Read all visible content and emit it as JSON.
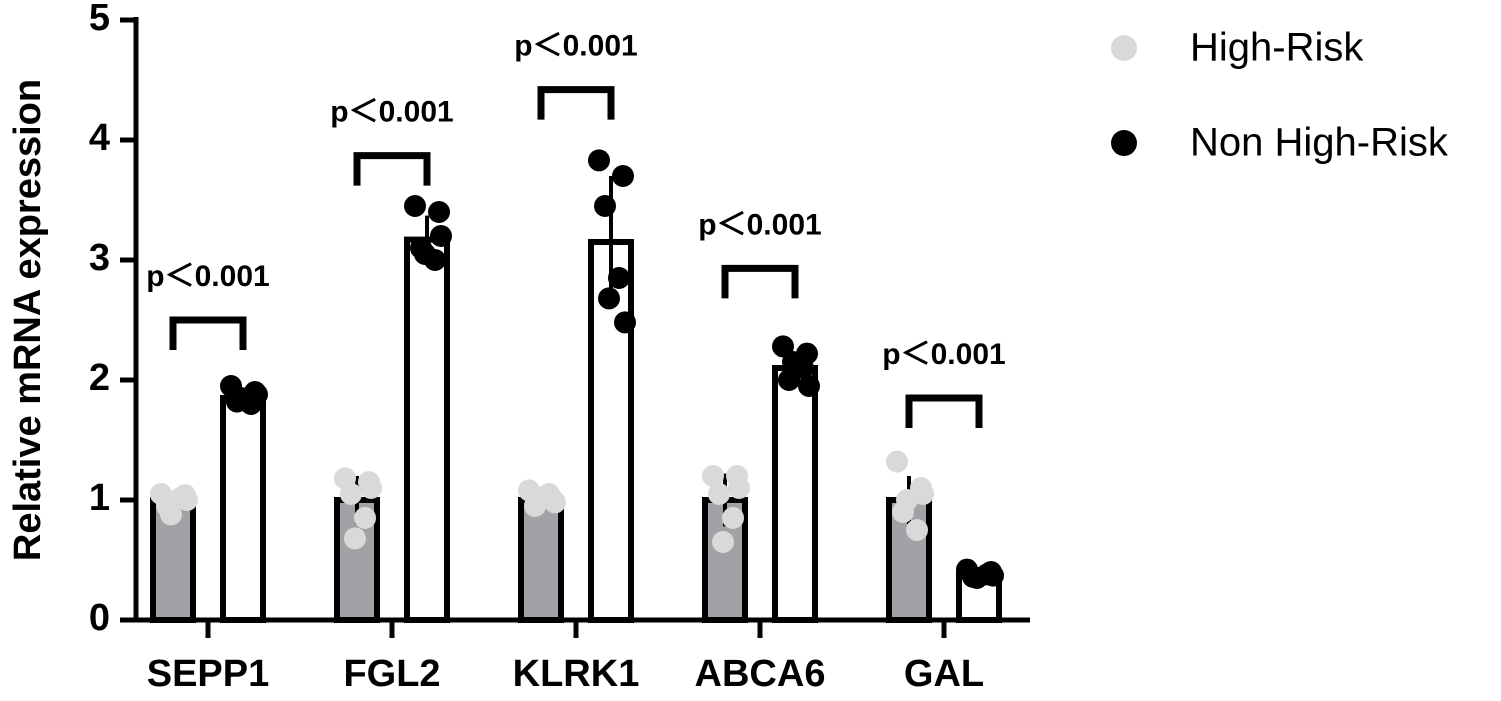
{
  "chart_data": {
    "type": "bar-scatter",
    "ylabel": "Relative  mRNA expression",
    "categories": [
      "SEPP1",
      "FGL2",
      "KLRK1",
      "ABCA6",
      "GAL"
    ],
    "ylim": [
      0,
      5
    ],
    "yticks": [
      0,
      1,
      2,
      3,
      4,
      5
    ],
    "series": [
      {
        "name": "High-Risk",
        "color": "#d9d9d9",
        "bar_fill": "#a2a2a6",
        "values": [
          1,
          1,
          1,
          1,
          1
        ],
        "errors": [
          0.05,
          0.2,
          0.05,
          0.22,
          0.2
        ],
        "points": [
          [
            1.05,
            1.04,
            0.95,
            1.02,
            0.88,
            1.0
          ],
          [
            1.18,
            1.15,
            1.05,
            0.85,
            0.68,
            1.1
          ],
          [
            1.08,
            1.0,
            0.95,
            1.05,
            1.02,
            0.98
          ],
          [
            1.2,
            1.2,
            1.05,
            0.85,
            0.65,
            1.1
          ],
          [
            1.32,
            1.1,
            0.9,
            0.75,
            1.0,
            1.05
          ]
        ]
      },
      {
        "name": "Non High-Risk",
        "color": "#000000",
        "bar_fill": "#ffffff",
        "values": [
          1.85,
          3.17,
          3.15,
          2.1,
          0.38
        ],
        "errors": [
          0.08,
          0.2,
          0.55,
          0.12,
          0.03
        ],
        "points": [
          [
            1.95,
            1.9,
            1.82,
            1.8,
            1.85,
            1.88
          ],
          [
            3.45,
            3.4,
            3.1,
            3.0,
            3.05,
            3.2
          ],
          [
            3.83,
            3.7,
            3.45,
            2.85,
            2.68,
            2.48
          ],
          [
            2.28,
            2.22,
            2.0,
            2.1,
            2.15,
            1.95
          ],
          [
            0.42,
            0.4,
            0.36,
            0.38,
            0.35,
            0.37
          ]
        ]
      }
    ],
    "brackets": [
      {
        "label": "p＜0.001",
        "y": 2.5
      },
      {
        "label": "p＜0.001",
        "y": 3.87
      },
      {
        "label": "p＜0.001",
        "y": 4.42
      },
      {
        "label": "p＜0.001",
        "y": 2.93
      },
      {
        "label": "p＜0.001",
        "y": 1.85
      }
    ]
  }
}
